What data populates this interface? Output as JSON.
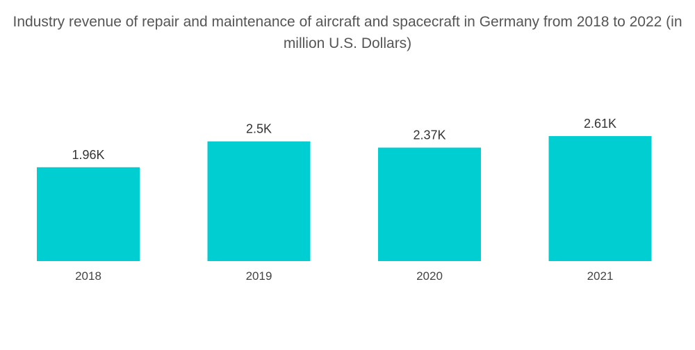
{
  "chart_data": {
    "type": "bar",
    "title": "Industry revenue of repair and maintenance of aircraft and spacecraft in Germany from 2018 to 2022 (in million U.S. Dollars)",
    "categories": [
      "2018",
      "2019",
      "2020",
      "2021"
    ],
    "values": [
      1960,
      2500,
      2370,
      2610
    ],
    "value_labels": [
      "1.96K",
      "2.5K",
      "2.37K",
      "2.61K"
    ],
    "xlabel": "",
    "ylabel": "",
    "ylim": [
      0,
      2610
    ],
    "grid": false,
    "legend": "none",
    "bar_color": "#00CED1"
  }
}
